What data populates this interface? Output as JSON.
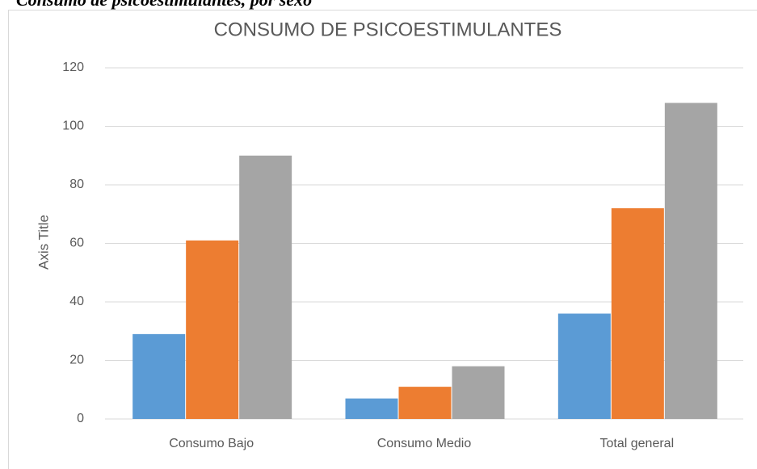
{
  "caption": "Consumo de psicoestimulantes, por sexo",
  "chart_data": {
    "type": "bar",
    "title": "CONSUMO DE PSICOESTIMULANTES",
    "y_label": "Axis Title",
    "categories": [
      "Consumo Bajo",
      "Consumo Medio",
      "Total general"
    ],
    "series": [
      {
        "color": "#5b9bd5",
        "values": [
          29,
          7,
          36
        ]
      },
      {
        "color": "#ed7d31",
        "values": [
          61,
          11,
          72
        ]
      },
      {
        "color": "#a5a5a5",
        "values": [
          90,
          18,
          108
        ]
      }
    ],
    "ylim": [
      0,
      120
    ],
    "yticks": [
      0,
      20,
      40,
      60,
      80,
      100,
      120
    ],
    "grid": true
  }
}
